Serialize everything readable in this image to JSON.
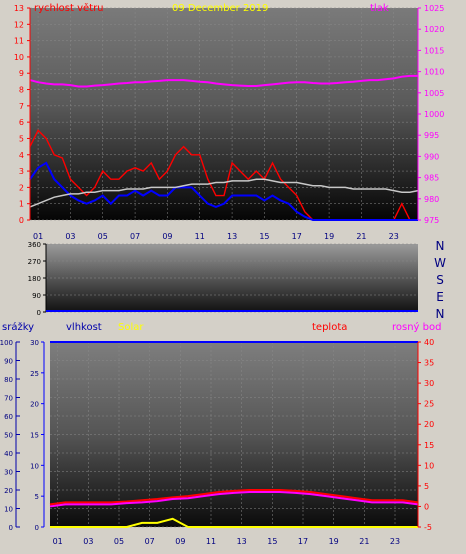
{
  "title": "09 December 2019",
  "colors": {
    "wind": "#ff0000",
    "gust": "#0000ff",
    "avg": "#c8c8c8",
    "pressure": "#ff00ff",
    "direction": "#0000ff",
    "rain": "#0000aa",
    "humidity": "#0000ff",
    "solar": "#ffff00",
    "temperature": "#ff0000",
    "dewpoint": "#ff00ff",
    "axis_left": "#ff0000",
    "axis_right": "#ff00ff"
  },
  "x_ticks": [
    "01",
    "03",
    "05",
    "07",
    "09",
    "11",
    "13",
    "15",
    "17",
    "19",
    "21",
    "23"
  ],
  "chart_data": [
    {
      "type": "line",
      "name": "wind",
      "labels": {
        "left": "rychlost větru",
        "right": "tlak"
      },
      "left_axis": {
        "ylim": [
          0,
          13
        ],
        "ticks": [
          "0",
          "1",
          "2",
          "3",
          "4",
          "5",
          "6",
          "7",
          "8",
          "9",
          "10",
          "11",
          "12",
          "13"
        ]
      },
      "right_axis": {
        "ylim": [
          975,
          1025
        ],
        "ticks": [
          "975",
          "980",
          "985",
          "990",
          "995",
          "1000",
          "1005",
          "1010",
          "1015",
          "1020",
          "1025"
        ]
      },
      "x": [
        0,
        0.5,
        1,
        1.5,
        2,
        2.5,
        3,
        3.5,
        4,
        4.5,
        5,
        5.5,
        6,
        6.5,
        7,
        7.5,
        8,
        8.5,
        9,
        9.5,
        10,
        10.5,
        11,
        11.5,
        12,
        12.5,
        13,
        13.5,
        14,
        14.5,
        15,
        15.5,
        16,
        16.5,
        17,
        17.5,
        18,
        18.5,
        19,
        19.5,
        20,
        20.5,
        21,
        21.5,
        22,
        22.5,
        23,
        23.5,
        24
      ],
      "series": [
        {
          "axis": "left",
          "values": [
            4.5,
            5.5,
            5.0,
            4.0,
            3.8,
            2.5,
            2.0,
            1.5,
            2.0,
            3.0,
            2.5,
            2.5,
            3.0,
            3.2,
            3.0,
            3.5,
            2.5,
            3.0,
            4.0,
            4.5,
            4.0,
            4.0,
            2.5,
            1.5,
            1.5,
            3.5,
            3.0,
            2.5,
            3.0,
            2.5,
            3.5,
            2.5,
            2.0,
            1.5,
            0.5,
            0,
            0,
            0,
            0,
            0,
            0,
            0,
            0,
            0,
            0,
            0,
            1.0,
            0,
            0
          ]
        },
        {
          "axis": "left",
          "values": [
            2.5,
            3.2,
            3.5,
            2.5,
            2.0,
            1.5,
            1.2,
            1.0,
            1.2,
            1.5,
            1.0,
            1.5,
            1.5,
            1.8,
            1.5,
            1.8,
            1.5,
            1.5,
            2.0,
            2.0,
            2.0,
            1.5,
            1.0,
            0.8,
            1.0,
            1.5,
            1.5,
            1.5,
            1.5,
            1.2,
            1.5,
            1.2,
            1.0,
            0.5,
            0.2,
            0,
            0,
            0,
            0,
            0,
            0,
            0,
            0,
            0,
            0,
            0,
            0,
            0,
            0
          ]
        },
        {
          "axis": "left",
          "values": [
            0.8,
            1.0,
            1.2,
            1.4,
            1.5,
            1.6,
            1.6,
            1.7,
            1.7,
            1.8,
            1.8,
            1.8,
            1.9,
            1.9,
            1.9,
            2.0,
            2.0,
            2.0,
            2.0,
            2.1,
            2.2,
            2.2,
            2.2,
            2.3,
            2.3,
            2.4,
            2.4,
            2.4,
            2.5,
            2.5,
            2.4,
            2.3,
            2.3,
            2.3,
            2.2,
            2.1,
            2.1,
            2.0,
            2.0,
            2.0,
            1.9,
            1.9,
            1.9,
            1.9,
            1.9,
            1.8,
            1.7,
            1.7,
            1.8
          ]
        },
        {
          "axis": "right",
          "values": [
            1008,
            1007.5,
            1007.2,
            1007,
            1007,
            1006.8,
            1006.5,
            1006.5,
            1006.7,
            1006.8,
            1007,
            1007.2,
            1007.3,
            1007.5,
            1007.5,
            1007.7,
            1007.8,
            1008,
            1008,
            1008,
            1007.8,
            1007.6,
            1007.5,
            1007.2,
            1007,
            1006.8,
            1006.7,
            1006.6,
            1006.6,
            1006.8,
            1007,
            1007.2,
            1007.4,
            1007.5,
            1007.5,
            1007.3,
            1007.2,
            1007.2,
            1007.3,
            1007.5,
            1007.6,
            1007.8,
            1008,
            1008,
            1008.2,
            1008.4,
            1008.8,
            1009,
            1009
          ]
        }
      ]
    },
    {
      "type": "line",
      "name": "direction",
      "labels": {
        "right": [
          "N",
          "W",
          "S",
          "E",
          "N"
        ]
      },
      "left_axis": {
        "ylim": [
          0,
          360
        ],
        "ticks": [
          "0",
          "90",
          "180",
          "270",
          "360"
        ]
      },
      "x": [
        0,
        24
      ],
      "series": [
        {
          "values": [
            0,
            0
          ]
        }
      ]
    },
    {
      "type": "line",
      "name": "temperature",
      "labels": {
        "rain": "srážky",
        "humidity": "vlhkost",
        "solar": "Solar",
        "temperature": "teplota",
        "dewpoint": "rosný bod"
      },
      "rain_axis": {
        "ylim": [
          0,
          100
        ],
        "ticks": [
          "0",
          "10",
          "20",
          "30",
          "40",
          "50",
          "60",
          "70",
          "80",
          "90",
          "100"
        ]
      },
      "humidity_axis": {
        "ylim": [
          0,
          30
        ],
        "ticks": [
          "0",
          "5",
          "10",
          "15",
          "20",
          "25",
          "30"
        ]
      },
      "temp_axis": {
        "ylim": [
          -5,
          40
        ],
        "ticks": [
          "-5",
          "0",
          "5",
          "10",
          "15",
          "20",
          "25",
          "30",
          "35",
          "40"
        ]
      },
      "x": [
        0,
        1,
        2,
        3,
        4,
        5,
        6,
        7,
        8,
        9,
        10,
        11,
        12,
        13,
        14,
        15,
        16,
        17,
        18,
        19,
        20,
        21,
        22,
        23,
        24
      ],
      "series": [
        {
          "axis": "humidity",
          "values": [
            30,
            30,
            30,
            30,
            30,
            30,
            30,
            30,
            30,
            30,
            30,
            30,
            30,
            30,
            30,
            30,
            30,
            30,
            30,
            30,
            30,
            30,
            30,
            30,
            30
          ]
        },
        {
          "axis": "temp",
          "values": [
            0.5,
            1.0,
            1.0,
            1.0,
            1.0,
            1.2,
            1.5,
            1.8,
            2.2,
            2.5,
            3.0,
            3.5,
            3.8,
            4.0,
            4.0,
            4.0,
            3.8,
            3.5,
            3.0,
            2.5,
            2.0,
            1.5,
            1.5,
            1.5,
            1.0
          ]
        },
        {
          "axis": "temp",
          "values": [
            0,
            0.5,
            0.5,
            0.5,
            0.5,
            0.8,
            1.0,
            1.3,
            1.8,
            2.0,
            2.5,
            3.0,
            3.3,
            3.5,
            3.5,
            3.5,
            3.3,
            3.0,
            2.5,
            2.0,
            1.5,
            1.0,
            1.0,
            1.0,
            0.5
          ]
        },
        {
          "axis": "temp",
          "values": [
            -5,
            -5,
            -5,
            -5,
            -5,
            -5,
            -4,
            -4,
            -3,
            -5,
            -5,
            -5,
            -5,
            -5,
            -5,
            -5,
            -5,
            -5,
            -5,
            -5,
            -5,
            -5,
            -5,
            -5,
            -5
          ]
        }
      ]
    }
  ]
}
